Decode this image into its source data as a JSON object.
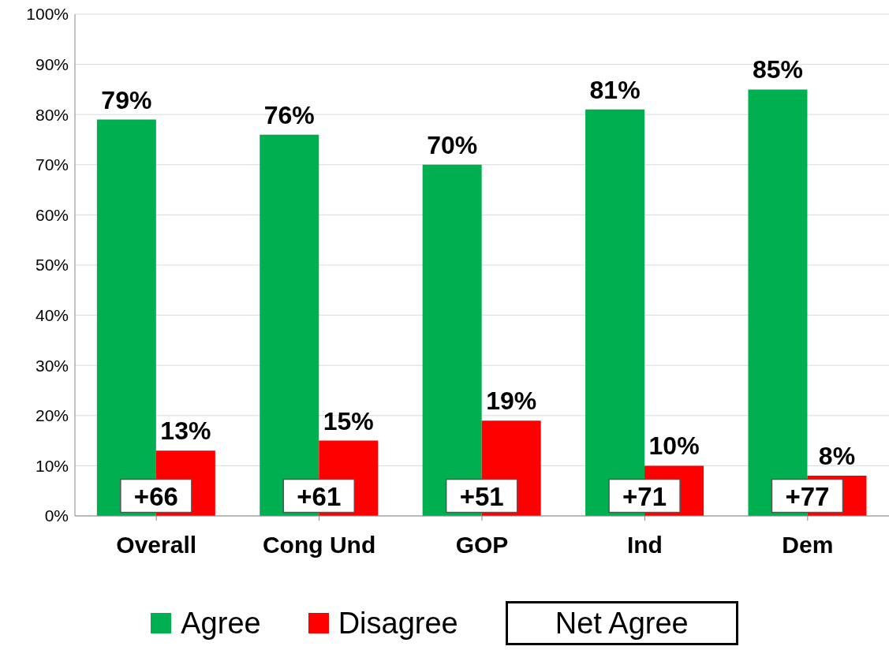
{
  "chart_data": {
    "type": "bar",
    "categories": [
      "Overall",
      "Cong Und",
      "GOP",
      "Ind",
      "Dem"
    ],
    "series": [
      {
        "name": "Agree",
        "color": "#00b050",
        "values": [
          79,
          76,
          70,
          81,
          85
        ],
        "value_labels": [
          "79%",
          "76%",
          "70%",
          "81%",
          "85%"
        ]
      },
      {
        "name": "Disagree",
        "color": "#ff0000",
        "values": [
          13,
          15,
          19,
          10,
          8
        ],
        "value_labels": [
          "13%",
          "15%",
          "19%",
          "10%",
          "8%"
        ]
      }
    ],
    "annotations": [
      {
        "text": "+66",
        "x": "Overall",
        "y": 4
      },
      {
        "text": "+61",
        "x": "Cong Und",
        "y": 4
      },
      {
        "text": "+51",
        "x": "GOP",
        "y": 4
      },
      {
        "text": "+71",
        "x": "Ind",
        "y": 4
      },
      {
        "text": "+77",
        "x": "Dem",
        "y": 4
      },
      "Net Agree"
    ],
    "ylim": [
      0,
      100
    ],
    "yticks": [
      {
        "value": 0,
        "label": "0%"
      },
      {
        "value": 10,
        "label": "10%"
      },
      {
        "value": 20,
        "label": "20%"
      },
      {
        "value": 30,
        "label": "30%"
      },
      {
        "value": 40,
        "label": "40%"
      },
      {
        "value": 50,
        "label": "50%"
      },
      {
        "value": 60,
        "label": "60%"
      },
      {
        "value": 70,
        "label": "70%"
      },
      {
        "value": 80,
        "label": "80%"
      },
      {
        "value": 90,
        "label": "90%"
      },
      {
        "value": 100,
        "label": "100%"
      }
    ],
    "grid": "y",
    "legend": "bottom"
  }
}
